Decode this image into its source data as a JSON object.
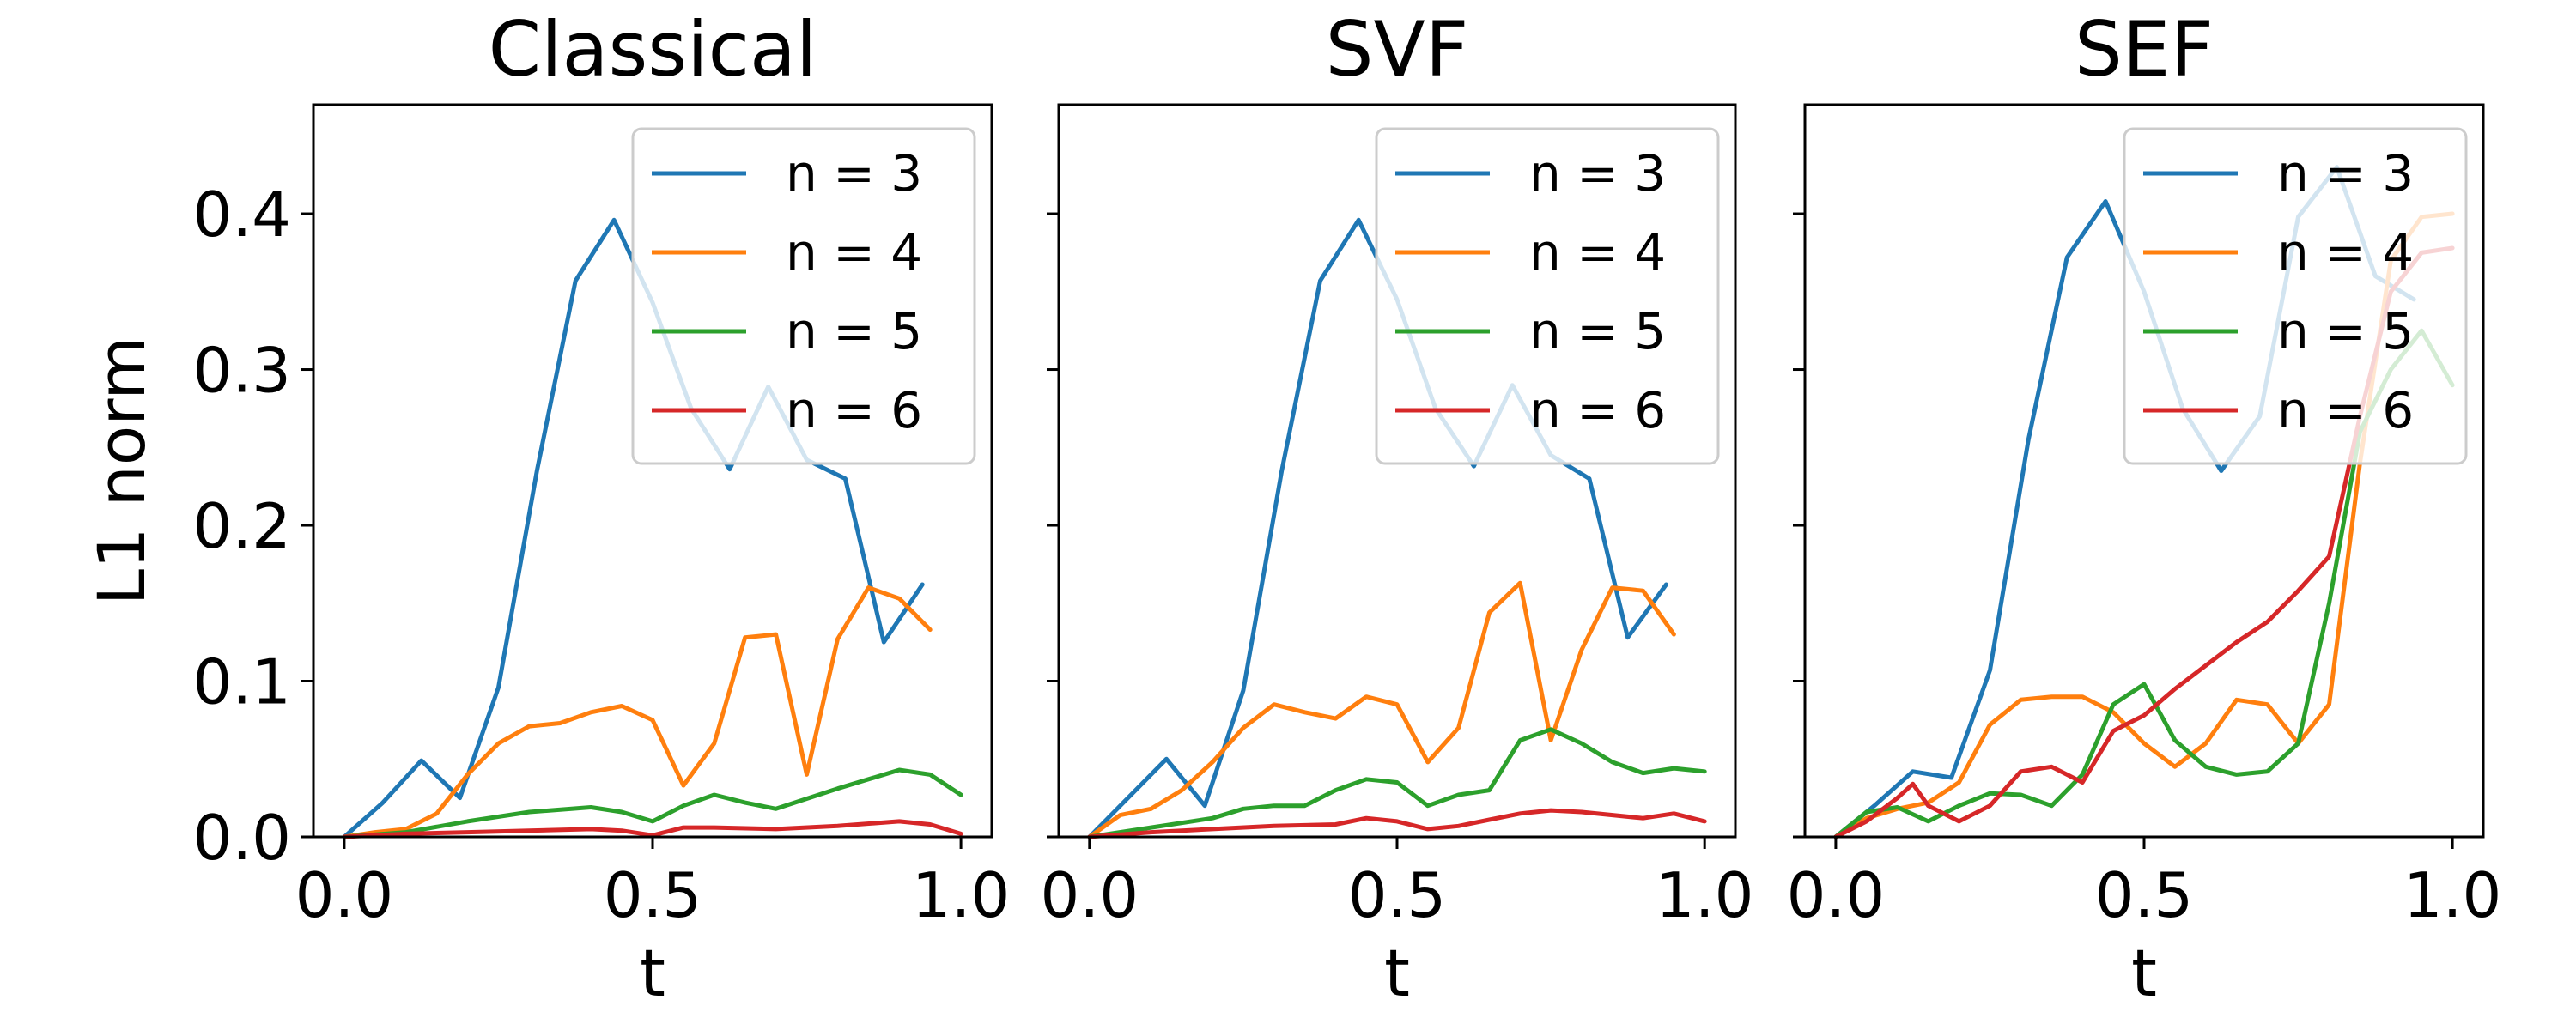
{
  "chart_data": [
    {
      "type": "line",
      "title": "Classical",
      "xlabel": "t",
      "ylabel": "L1 norm",
      "xlim": [
        -0.05,
        1.05
      ],
      "ylim": [
        0,
        0.47
      ],
      "xticks": [
        "0.0",
        "0.5",
        "1.0"
      ],
      "xtick_values": [
        0,
        0.5,
        1.0
      ],
      "yticks": [
        "0.0",
        "0.1",
        "0.2",
        "0.3",
        "0.4"
      ],
      "ytick_values": [
        0,
        0.1,
        0.2,
        0.3,
        0.4
      ],
      "legend_position": "upper-right",
      "series": [
        {
          "name": "n = 3",
          "color": "#1f77b4",
          "x": [
            0,
            0.0625,
            0.125,
            0.1875,
            0.25,
            0.3125,
            0.375,
            0.4375,
            0.5,
            0.5625,
            0.625,
            0.6875,
            0.75,
            0.8125,
            0.875,
            0.9375
          ],
          "y": [
            0,
            0.022,
            0.049,
            0.025,
            0.096,
            0.235,
            0.357,
            0.396,
            0.343,
            0.275,
            0.236,
            0.289,
            0.242,
            0.23,
            0.125,
            0.162
          ]
        },
        {
          "name": "n = 4",
          "color": "#ff7f0e",
          "x": [
            0,
            0.05,
            0.1,
            0.15,
            0.2,
            0.25,
            0.3,
            0.35,
            0.4,
            0.45,
            0.5,
            0.55,
            0.6,
            0.65,
            0.7,
            0.75,
            0.8,
            0.85,
            0.9,
            0.95
          ],
          "y": [
            0,
            0.003,
            0.005,
            0.015,
            0.04,
            0.06,
            0.071,
            0.073,
            0.08,
            0.084,
            0.075,
            0.033,
            0.06,
            0.128,
            0.13,
            0.04,
            0.127,
            0.16,
            0.153,
            0.133
          ]
        },
        {
          "name": "n = 5",
          "color": "#2ca02c",
          "x": [
            0,
            0.1,
            0.2,
            0.3,
            0.4,
            0.45,
            0.5,
            0.55,
            0.6,
            0.65,
            0.7,
            0.8,
            0.9,
            0.95,
            1.0
          ],
          "y": [
            0,
            0.003,
            0.01,
            0.016,
            0.019,
            0.016,
            0.01,
            0.02,
            0.027,
            0.022,
            0.018,
            0.031,
            0.043,
            0.04,
            0.027
          ]
        },
        {
          "name": "n = 6",
          "color": "#d62728",
          "x": [
            0,
            0.1,
            0.2,
            0.3,
            0.4,
            0.45,
            0.5,
            0.55,
            0.6,
            0.7,
            0.8,
            0.9,
            0.95,
            1.0
          ],
          "y": [
            0,
            0.002,
            0.003,
            0.004,
            0.005,
            0.004,
            0.001,
            0.006,
            0.006,
            0.005,
            0.007,
            0.01,
            0.008,
            0.002
          ]
        }
      ]
    },
    {
      "type": "line",
      "title": "SVF",
      "xlabel": "t",
      "ylabel": "",
      "xlim": [
        -0.05,
        1.05
      ],
      "ylim": [
        0,
        0.47
      ],
      "xticks": [
        "0.0",
        "0.5",
        "1.0"
      ],
      "xtick_values": [
        0,
        0.5,
        1.0
      ],
      "yticks": [],
      "ytick_values": [
        0,
        0.1,
        0.2,
        0.3,
        0.4
      ],
      "legend_position": "upper-right",
      "series": [
        {
          "name": "n = 3",
          "color": "#1f77b4",
          "x": [
            0,
            0.0625,
            0.125,
            0.1875,
            0.25,
            0.3125,
            0.375,
            0.4375,
            0.5,
            0.5625,
            0.625,
            0.6875,
            0.75,
            0.8125,
            0.875,
            0.9375
          ],
          "y": [
            0,
            0.025,
            0.05,
            0.02,
            0.094,
            0.235,
            0.357,
            0.396,
            0.345,
            0.275,
            0.238,
            0.29,
            0.245,
            0.23,
            0.128,
            0.162
          ]
        },
        {
          "name": "n = 4",
          "color": "#ff7f0e",
          "x": [
            0,
            0.05,
            0.1,
            0.15,
            0.2,
            0.25,
            0.3,
            0.35,
            0.4,
            0.45,
            0.5,
            0.55,
            0.6,
            0.65,
            0.7,
            0.75,
            0.8,
            0.85,
            0.9,
            0.95
          ],
          "y": [
            0,
            0.014,
            0.018,
            0.03,
            0.048,
            0.07,
            0.085,
            0.08,
            0.076,
            0.09,
            0.085,
            0.048,
            0.07,
            0.144,
            0.163,
            0.062,
            0.12,
            0.16,
            0.158,
            0.13
          ]
        },
        {
          "name": "n = 5",
          "color": "#2ca02c",
          "x": [
            0,
            0.1,
            0.2,
            0.25,
            0.3,
            0.35,
            0.4,
            0.45,
            0.5,
            0.55,
            0.6,
            0.65,
            0.7,
            0.75,
            0.8,
            0.85,
            0.9,
            0.95,
            1.0
          ],
          "y": [
            0,
            0.006,
            0.012,
            0.018,
            0.02,
            0.02,
            0.03,
            0.037,
            0.035,
            0.02,
            0.027,
            0.03,
            0.062,
            0.069,
            0.06,
            0.048,
            0.041,
            0.044,
            0.042
          ]
        },
        {
          "name": "n = 6",
          "color": "#d62728",
          "x": [
            0,
            0.1,
            0.2,
            0.3,
            0.4,
            0.45,
            0.5,
            0.55,
            0.6,
            0.65,
            0.7,
            0.75,
            0.8,
            0.9,
            0.95,
            1.0
          ],
          "y": [
            0,
            0.003,
            0.005,
            0.007,
            0.008,
            0.012,
            0.01,
            0.005,
            0.007,
            0.011,
            0.015,
            0.017,
            0.016,
            0.012,
            0.015,
            0.01
          ]
        }
      ]
    },
    {
      "type": "line",
      "title": "SEF",
      "xlabel": "t",
      "ylabel": "",
      "xlim": [
        -0.05,
        1.05
      ],
      "ylim": [
        0,
        0.47
      ],
      "xticks": [
        "0.0",
        "0.5",
        "1.0"
      ],
      "xtick_values": [
        0,
        0.5,
        1.0
      ],
      "yticks": [],
      "ytick_values": [
        0,
        0.1,
        0.2,
        0.3,
        0.4
      ],
      "legend_position": "upper-right",
      "series": [
        {
          "name": "n = 3",
          "color": "#1f77b4",
          "x": [
            0,
            0.0625,
            0.125,
            0.1875,
            0.25,
            0.3125,
            0.375,
            0.4375,
            0.5,
            0.5625,
            0.625,
            0.6875,
            0.75,
            0.8125,
            0.875,
            0.9375
          ],
          "y": [
            0,
            0.02,
            0.042,
            0.038,
            0.107,
            0.255,
            0.372,
            0.408,
            0.35,
            0.275,
            0.235,
            0.27,
            0.398,
            0.43,
            0.36,
            0.345
          ]
        },
        {
          "name": "n = 4",
          "color": "#ff7f0e",
          "x": [
            0,
            0.05,
            0.1,
            0.15,
            0.2,
            0.25,
            0.3,
            0.35,
            0.4,
            0.45,
            0.5,
            0.55,
            0.6,
            0.65,
            0.7,
            0.75,
            0.8,
            0.85,
            0.9,
            0.95,
            1.0
          ],
          "y": [
            0,
            0.012,
            0.018,
            0.022,
            0.035,
            0.072,
            0.088,
            0.09,
            0.09,
            0.08,
            0.06,
            0.045,
            0.06,
            0.088,
            0.085,
            0.06,
            0.085,
            0.24,
            0.37,
            0.398,
            0.4
          ]
        },
        {
          "name": "n = 5",
          "color": "#2ca02c",
          "x": [
            0,
            0.05,
            0.1,
            0.15,
            0.2,
            0.25,
            0.3,
            0.35,
            0.4,
            0.45,
            0.5,
            0.55,
            0.6,
            0.65,
            0.7,
            0.75,
            0.8,
            0.85,
            0.9,
            0.95,
            1.0
          ],
          "y": [
            0,
            0.016,
            0.019,
            0.01,
            0.02,
            0.028,
            0.027,
            0.02,
            0.04,
            0.085,
            0.098,
            0.062,
            0.045,
            0.04,
            0.042,
            0.06,
            0.15,
            0.26,
            0.3,
            0.325,
            0.29
          ]
        },
        {
          "name": "n = 6",
          "color": "#d62728",
          "x": [
            0,
            0.05,
            0.1,
            0.125,
            0.15,
            0.2,
            0.25,
            0.3,
            0.35,
            0.4,
            0.45,
            0.5,
            0.55,
            0.6,
            0.65,
            0.7,
            0.75,
            0.8,
            0.85,
            0.9,
            0.95,
            1.0
          ],
          "y": [
            0,
            0.01,
            0.025,
            0.034,
            0.02,
            0.01,
            0.02,
            0.042,
            0.045,
            0.035,
            0.068,
            0.078,
            0.095,
            0.11,
            0.125,
            0.138,
            0.158,
            0.18,
            0.27,
            0.35,
            0.375,
            0.378
          ]
        }
      ]
    }
  ]
}
